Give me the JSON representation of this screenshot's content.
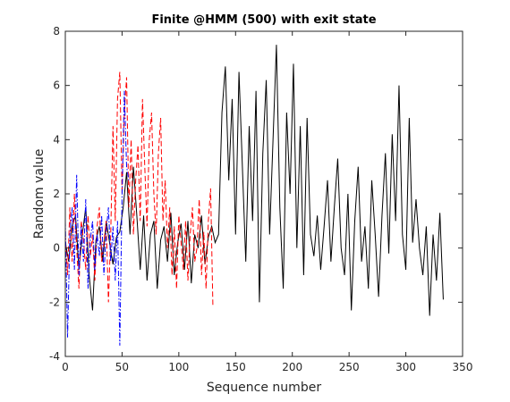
{
  "chart_data": {
    "type": "line",
    "title": "Finite @HMM (500) with exit state",
    "xlabel": "Sequence number",
    "ylabel": "Random value",
    "xlim": [
      0,
      350
    ],
    "xticks": [
      0,
      50,
      100,
      150,
      200,
      250,
      300,
      350
    ],
    "ylim": [
      -4,
      8
    ],
    "yticks": [
      -4,
      -2,
      0,
      2,
      4,
      6,
      8
    ],
    "grid": false,
    "series": [
      {
        "color": "#000000",
        "linestyle": "-",
        "x": [
          0,
          3,
          6,
          9,
          12,
          15,
          18,
          21,
          24,
          27,
          30,
          33,
          36,
          39,
          42,
          45,
          48,
          51,
          54,
          57,
          60,
          63,
          66,
          69,
          72,
          75,
          78,
          81,
          84,
          87,
          90,
          93,
          96,
          99,
          102,
          105,
          108,
          111,
          114,
          117,
          120,
          123,
          126,
          129,
          132,
          135,
          138,
          141,
          144,
          147,
          150,
          153,
          156,
          159,
          162,
          165,
          168,
          171,
          174,
          177,
          180,
          183,
          186,
          189,
          192,
          195,
          198,
          201,
          204,
          207,
          210,
          213,
          216,
          219,
          222,
          225,
          228,
          231,
          234,
          237,
          240,
          243,
          246,
          249,
          252,
          255,
          258,
          261,
          264,
          267,
          270,
          273,
          276,
          279,
          282,
          285,
          288,
          291,
          294,
          297,
          300,
          303,
          306,
          309,
          312,
          315,
          318,
          321,
          324,
          327,
          330,
          333
        ],
        "values": [
          0.2,
          -0.5,
          0.8,
          1.2,
          -0.8,
          0.5,
          1.5,
          -1.0,
          -2.3,
          0.3,
          0.8,
          -0.5,
          1.0,
          0.2,
          -0.6,
          0.4,
          0.6,
          1.5,
          2.8,
          0.5,
          3.0,
          1.2,
          -0.8,
          1.2,
          -1.2,
          0.5,
          1.0,
          -1.5,
          0.3,
          0.8,
          -0.5,
          1.3,
          -1.0,
          0.2,
          0.9,
          -0.8,
          1.0,
          -1.3,
          0.5,
          0.0,
          1.2,
          -0.6,
          0.4,
          0.8,
          0.2,
          0.5,
          5.0,
          6.7,
          2.5,
          5.5,
          0.5,
          6.5,
          3.0,
          -0.5,
          4.5,
          1.0,
          5.8,
          -2.0,
          3.5,
          6.2,
          0.5,
          4.0,
          7.5,
          1.5,
          -1.5,
          5.0,
          2.0,
          6.8,
          0.0,
          4.5,
          -1.0,
          4.8,
          0.5,
          -0.3,
          1.2,
          -0.8,
          0.8,
          2.5,
          -0.5,
          1.5,
          3.3,
          0.0,
          -1.0,
          2.0,
          -2.3,
          1.0,
          3.0,
          -0.5,
          0.8,
          -1.5,
          2.5,
          0.5,
          -1.8,
          1.2,
          3.5,
          -0.2,
          4.2,
          1.0,
          6.0,
          0.5,
          -0.8,
          4.8,
          0.2,
          1.8,
          0.0,
          -1.0,
          0.8,
          -2.5,
          0.5,
          -1.2,
          1.3,
          -1.9
        ]
      },
      {
        "color": "#ff0000",
        "linestyle": "--",
        "x": [
          0,
          2,
          4,
          6,
          8,
          10,
          12,
          14,
          16,
          18,
          20,
          22,
          24,
          26,
          28,
          30,
          32,
          34,
          36,
          38,
          40,
          42,
          44,
          46,
          48,
          50,
          52,
          54,
          56,
          58,
          60,
          62,
          64,
          66,
          68,
          70,
          72,
          74,
          76,
          78,
          80,
          82,
          84,
          86,
          88,
          90,
          92,
          94,
          96,
          98,
          100,
          102,
          104,
          106,
          108,
          110,
          112,
          114,
          116,
          118,
          120,
          122,
          124,
          126,
          128,
          130
        ],
        "values": [
          0.5,
          -1.0,
          1.5,
          -0.5,
          2.0,
          0.0,
          -1.5,
          1.0,
          0.3,
          -0.8,
          1.2,
          -0.3,
          0.5,
          -1.2,
          0.8,
          1.5,
          -0.5,
          0.2,
          1.0,
          -2.0,
          0.5,
          4.5,
          1.0,
          5.5,
          6.5,
          2.0,
          5.0,
          6.3,
          1.5,
          4.0,
          0.5,
          2.5,
          3.8,
          1.0,
          5.5,
          3.0,
          0.8,
          4.0,
          5.0,
          2.0,
          0.5,
          3.5,
          4.8,
          1.0,
          2.5,
          0.0,
          1.5,
          -1.0,
          0.8,
          -1.5,
          1.2,
          0.2,
          -0.8,
          1.0,
          -1.2,
          0.5,
          1.5,
          -0.5,
          0.0,
          1.8,
          -1.0,
          0.6,
          -1.5,
          1.0,
          2.2,
          -2.1
        ]
      },
      {
        "color": "#0000ff",
        "linestyle": "-.",
        "x": [
          0,
          2,
          4,
          6,
          8,
          10,
          12,
          14,
          16,
          18,
          20,
          22,
          24,
          26,
          28,
          30,
          32,
          34,
          36,
          38,
          40,
          42,
          44,
          46,
          48,
          50,
          52,
          54,
          56
        ],
        "values": [
          1.0,
          -3.3,
          0.5,
          1.5,
          -0.8,
          2.7,
          -1.0,
          0.8,
          -0.5,
          1.8,
          -1.5,
          0.3,
          1.0,
          -0.8,
          0.5,
          -0.3,
          1.2,
          -1.0,
          0.6,
          1.5,
          -0.5,
          0.8,
          -1.2,
          1.0,
          -3.6,
          2.0,
          5.8,
          3.0,
          2.5
        ]
      }
    ]
  }
}
